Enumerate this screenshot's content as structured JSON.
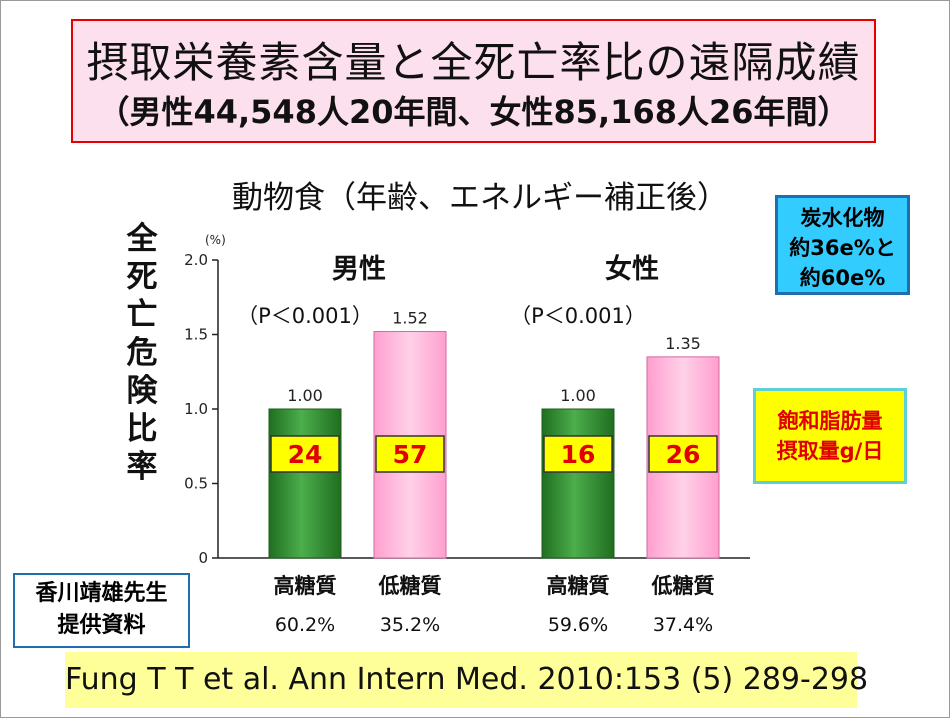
{
  "title": {
    "line1": "摂取栄養素含量と全死亡率比の遠隔成績",
    "line2": "（男性44,548人20年間、女性85,168人26年間）"
  },
  "subtitle": "動物食（年齢、エネルギー補正後）",
  "carb_note": [
    "炭水化物",
    "約36e%と",
    "約60e%"
  ],
  "fat_note": [
    "飽和脂肪量",
    "摂取量g/日"
  ],
  "credit": [
    "香川靖雄先生",
    "提供資料"
  ],
  "reference": "Fung T T et al. Ann Intern Med. 2010:153 (5) 289-298",
  "chart_data": {
    "type": "bar",
    "ylabel": "全死亡危険比率",
    "yunit": "(%)",
    "ylim": [
      0,
      2.0
    ],
    "yticks": [
      "0",
      "0.5",
      "1.0",
      "1.5",
      "2.0"
    ],
    "groups": [
      {
        "name": "男性",
        "pvalue": "（P＜0.001）",
        "bars": [
          {
            "category": "高糖質",
            "value": 1.0,
            "value_label": "1.00",
            "carb_pct": "60.2%",
            "sat_fat": "24",
            "color": "#2e8b2e"
          },
          {
            "category": "低糖質",
            "value": 1.52,
            "value_label": "1.52",
            "carb_pct": "35.2%",
            "sat_fat": "57",
            "color": "#ffb6d9"
          }
        ]
      },
      {
        "name": "女性",
        "pvalue": "（P＜0.001）",
        "bars": [
          {
            "category": "高糖質",
            "value": 1.0,
            "value_label": "1.00",
            "carb_pct": "59.6%",
            "sat_fat": "16",
            "color": "#2e8b2e"
          },
          {
            "category": "低糖質",
            "value": 1.35,
            "value_label": "1.35",
            "carb_pct": "37.4%",
            "sat_fat": "26",
            "color": "#ffb6d9"
          }
        ]
      }
    ]
  }
}
